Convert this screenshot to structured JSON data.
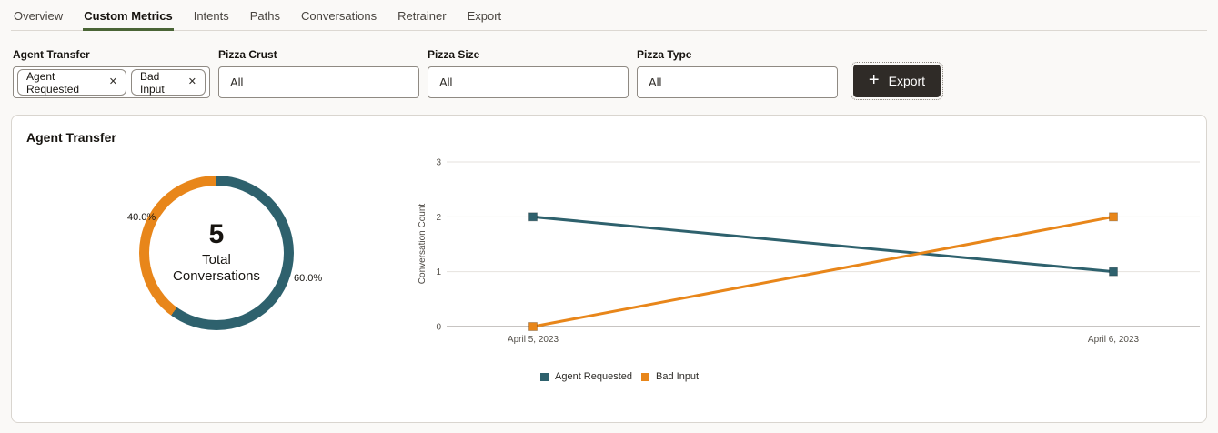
{
  "tabs": {
    "items": [
      {
        "label": "Overview",
        "active": false
      },
      {
        "label": "Custom Metrics",
        "active": true
      },
      {
        "label": "Intents",
        "active": false
      },
      {
        "label": "Paths",
        "active": false
      },
      {
        "label": "Conversations",
        "active": false
      },
      {
        "label": "Retrainer",
        "active": false
      },
      {
        "label": "Export",
        "active": false
      }
    ]
  },
  "filters": {
    "groups": [
      {
        "label": "Agent Transfer",
        "chips": [
          "Agent Requested",
          "Bad Input"
        ]
      },
      {
        "label": "Pizza Crust",
        "value": "All"
      },
      {
        "label": "Pizza Size",
        "value": "All"
      },
      {
        "label": "Pizza Type",
        "value": "All"
      }
    ],
    "export_button": {
      "label": "Export"
    }
  },
  "icons": {
    "close": "✕",
    "plus": "+"
  },
  "card": {
    "title": "Agent Transfer"
  },
  "colors": {
    "teal": "#2e616d",
    "orange": "#e8861a",
    "tab_underline": "#4a6536",
    "export_button_bg": "#2f2b27",
    "card_border": "#d9d5cf",
    "page_bg": "#faf9f7"
  },
  "chart_data": [
    {
      "type": "pie",
      "style": "donut",
      "title": "Agent Transfer",
      "slices": [
        {
          "label": "Agent Requested",
          "value": 3,
          "pct": 60.0,
          "pct_label": "60.0%",
          "color": "#2e616d"
        },
        {
          "label": "Bad Input",
          "value": 2,
          "pct": 40.0,
          "pct_label": "40.0%",
          "color": "#e8861a"
        }
      ],
      "center": {
        "value": "5",
        "label": "Total Conversations"
      },
      "total": 5
    },
    {
      "type": "line",
      "x": [
        "April 5, 2023",
        "April 6, 2023"
      ],
      "series": [
        {
          "name": "Agent Requested",
          "color": "#2e616d",
          "values": [
            2,
            1
          ]
        },
        {
          "name": "Bad Input",
          "color": "#e8861a",
          "values": [
            0,
            2
          ]
        }
      ],
      "ylabel": "Conversation Count",
      "ylim": [
        0,
        3
      ],
      "yticks": [
        0,
        1,
        2,
        3
      ],
      "grid": "horizontal",
      "legend_position": "bottom",
      "marker": "square"
    }
  ]
}
